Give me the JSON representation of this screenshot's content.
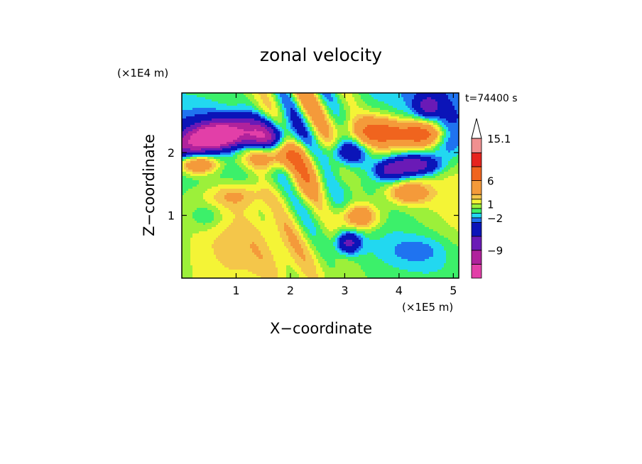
{
  "chart_data": {
    "type": "heatmap",
    "title": "zonal velocity",
    "xlabel": "X−coordinate",
    "ylabel": "Z−coordinate",
    "x_unit": "(×1E5 m)",
    "y_unit": "(×1E4 m)",
    "time_label": "t=74400 s",
    "xlim": [
      0,
      5.1
    ],
    "ylim": [
      0,
      2.95
    ],
    "x_ticks": [
      "1",
      "2",
      "3",
      "4",
      "5"
    ],
    "y_ticks": [
      "1",
      "2"
    ],
    "x_tick_values": [
      1,
      2,
      3,
      4,
      5
    ],
    "y_tick_values": [
      1,
      2
    ],
    "colorbar": {
      "extend": "max",
      "labels": [
        {
          "value": 15.1,
          "text": "15.1"
        },
        {
          "value": 6,
          "text": "6"
        },
        {
          "value": 1,
          "text": "1"
        },
        {
          "value": -2,
          "text": "−2"
        },
        {
          "value": -9,
          "text": "−9"
        }
      ],
      "levels": [
        -15,
        -12,
        -9,
        -6,
        -3,
        -2,
        -1,
        0,
        1,
        2,
        3,
        6,
        9,
        12,
        15.1
      ],
      "colors": [
        "#e23fa8",
        "#b0229c",
        "#6a1ab6",
        "#0b14b8",
        "#1f73f0",
        "#22d8f0",
        "#3cf06a",
        "#9cf03a",
        "#f4f436",
        "#f4c64a",
        "#f49a3a",
        "#f0641e",
        "#e6241e",
        "#f09090",
        "#f8cfcf"
      ],
      "overflow_color": "#ffffff"
    },
    "grid": false
  }
}
